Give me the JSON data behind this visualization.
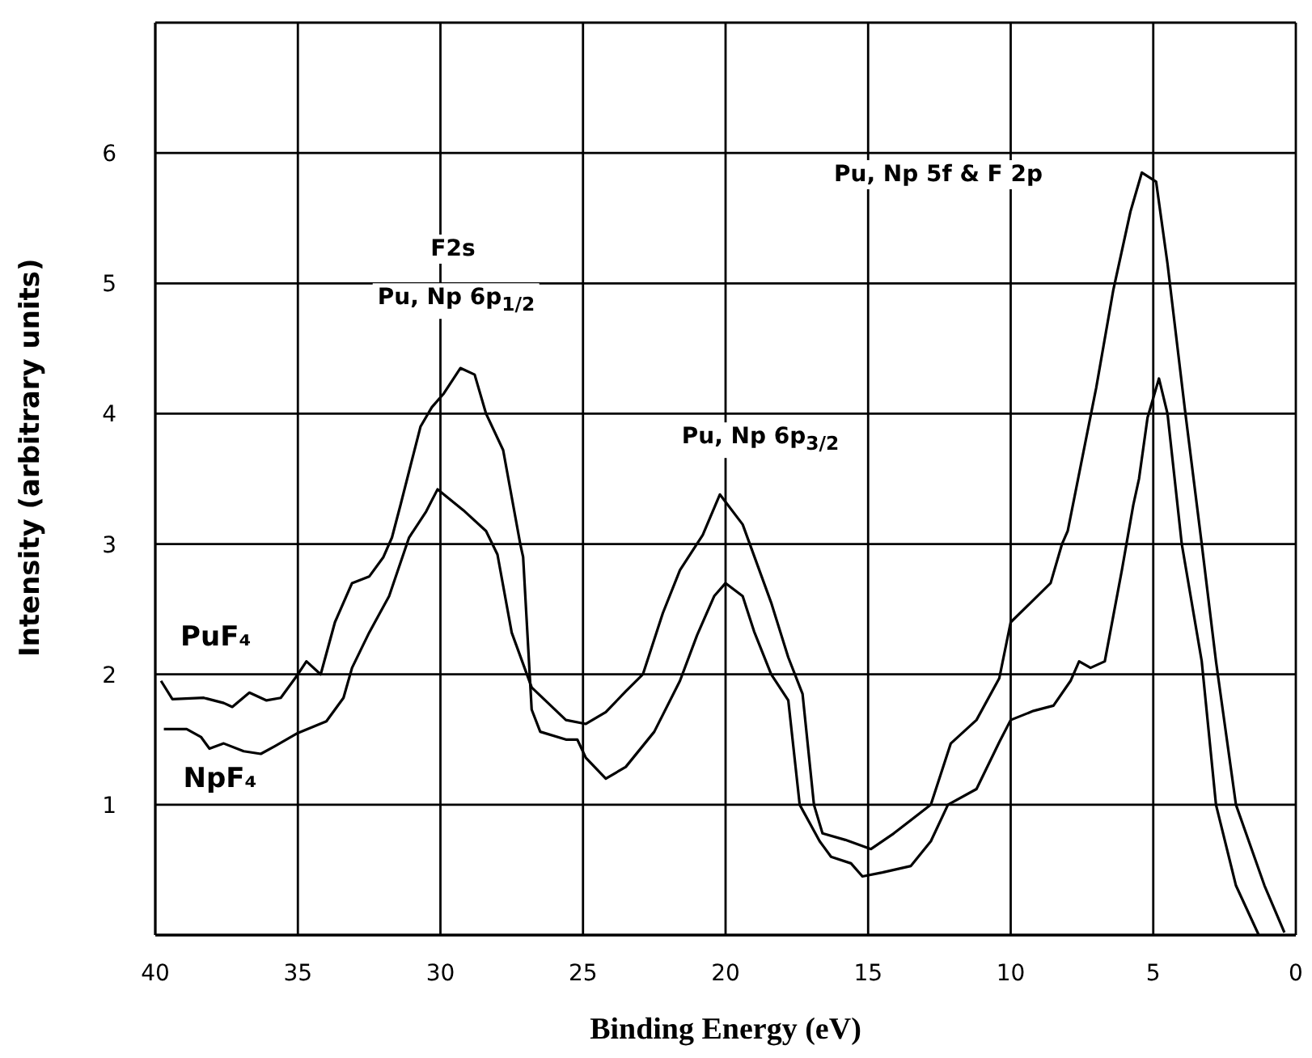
{
  "chart_data": {
    "type": "line",
    "xlabel": "Binding Energy (eV)",
    "ylabel": "Intensity (arbitrary units)",
    "xlim": [
      40,
      0
    ],
    "xticks": [
      40,
      35,
      30,
      25,
      20,
      15,
      10,
      5,
      0
    ],
    "ylim": [
      0,
      7
    ],
    "yticks": [
      {
        "value": 0,
        "label": null
      },
      1,
      2,
      3,
      4,
      5,
      6,
      {
        "value": 7,
        "label": null
      }
    ],
    "grid": true,
    "legend": false,
    "marker": "none",
    "line_style": "solid",
    "annotations": [
      "F2s",
      "Pu, Np 6p$_{1/2}$",
      "Pu, Np 6p$_{3/2}$",
      "Pu, Np 5f & F 2p"
    ],
    "series": [
      {
        "name": "PuF₄",
        "color": "#000000",
        "x": [
          39.8,
          39.4,
          38.3,
          37.6,
          37.3,
          36.7,
          36.1,
          35.6,
          35.0,
          34.7,
          34.2,
          33.7,
          33.1,
          32.5,
          32.0,
          31.7,
          31.4,
          30.7,
          30.3,
          29.9,
          29.3,
          28.8,
          28.4,
          27.8,
          27.2,
          27.1,
          26.8,
          26.5,
          25.6,
          25.2,
          24.9,
          24.2,
          23.5,
          22.5,
          21.6,
          21.0,
          20.4,
          20.0,
          19.4,
          19.0,
          18.4,
          17.8,
          17.4,
          16.7,
          16.3,
          15.6,
          15.2,
          14.5,
          13.5,
          12.8,
          12.2,
          11.2,
          10.4,
          10.0,
          9.2,
          8.5,
          7.9,
          7.6,
          7.2,
          6.7,
          6.1,
          5.7,
          5.5,
          5.2,
          4.8,
          4.5,
          4.0,
          3.3,
          2.8,
          2.1,
          1.3
        ],
        "values": [
          1.95,
          1.81,
          1.82,
          1.78,
          1.75,
          1.86,
          1.8,
          1.82,
          2.0,
          2.1,
          2.0,
          2.4,
          2.7,
          2.75,
          2.9,
          3.05,
          3.3,
          3.9,
          4.05,
          4.15,
          4.35,
          4.3,
          4.0,
          3.72,
          3.0,
          2.9,
          1.73,
          1.56,
          1.5,
          1.5,
          1.36,
          1.2,
          1.29,
          1.56,
          1.95,
          2.3,
          2.6,
          2.7,
          2.6,
          2.33,
          2.0,
          1.8,
          1.0,
          0.72,
          0.6,
          0.55,
          0.45,
          0.48,
          0.53,
          0.72,
          1.0,
          1.12,
          1.48,
          1.65,
          1.72,
          1.76,
          1.95,
          2.1,
          2.05,
          2.1,
          2.8,
          3.3,
          3.5,
          3.97,
          4.27,
          4.0,
          3.0,
          2.1,
          1.0,
          0.38,
          0
        ]
      },
      {
        "name": "NpF₄",
        "color": "#000000",
        "x": [
          39.7,
          38.9,
          38.4,
          38.1,
          37.6,
          36.9,
          36.3,
          35.8,
          35.0,
          34.0,
          33.4,
          33.1,
          32.5,
          31.8,
          31.1,
          30.5,
          30.1,
          29.2,
          28.4,
          28.0,
          27.5,
          26.8,
          25.6,
          24.9,
          24.2,
          23.5,
          22.9,
          22.2,
          21.6,
          20.8,
          20.2,
          19.4,
          18.4,
          17.8,
          17.3,
          16.9,
          16.6,
          15.8,
          14.9,
          14.1,
          12.8,
          12.1,
          11.2,
          10.4,
          10.0,
          8.6,
          8.2,
          8.0,
          7.0,
          6.4,
          5.8,
          5.4,
          4.9,
          4.5,
          3.9,
          3.3,
          2.8,
          2.1,
          1.1,
          0.4
        ],
        "values": [
          1.58,
          1.58,
          1.52,
          1.43,
          1.47,
          1.41,
          1.39,
          1.45,
          1.55,
          1.64,
          1.82,
          2.05,
          2.32,
          2.6,
          3.05,
          3.25,
          3.42,
          3.26,
          3.1,
          2.92,
          2.32,
          1.9,
          1.65,
          1.62,
          1.71,
          1.87,
          2.0,
          2.47,
          2.8,
          3.07,
          3.38,
          3.15,
          2.55,
          2.13,
          1.85,
          1.0,
          0.78,
          0.73,
          0.66,
          0.78,
          1.0,
          1.47,
          1.65,
          1.97,
          2.4,
          2.7,
          3.0,
          3.1,
          4.2,
          4.95,
          5.55,
          5.85,
          5.78,
          5.15,
          4.05,
          3.0,
          2.1,
          1.0,
          0.38,
          0.02
        ]
      }
    ]
  }
}
